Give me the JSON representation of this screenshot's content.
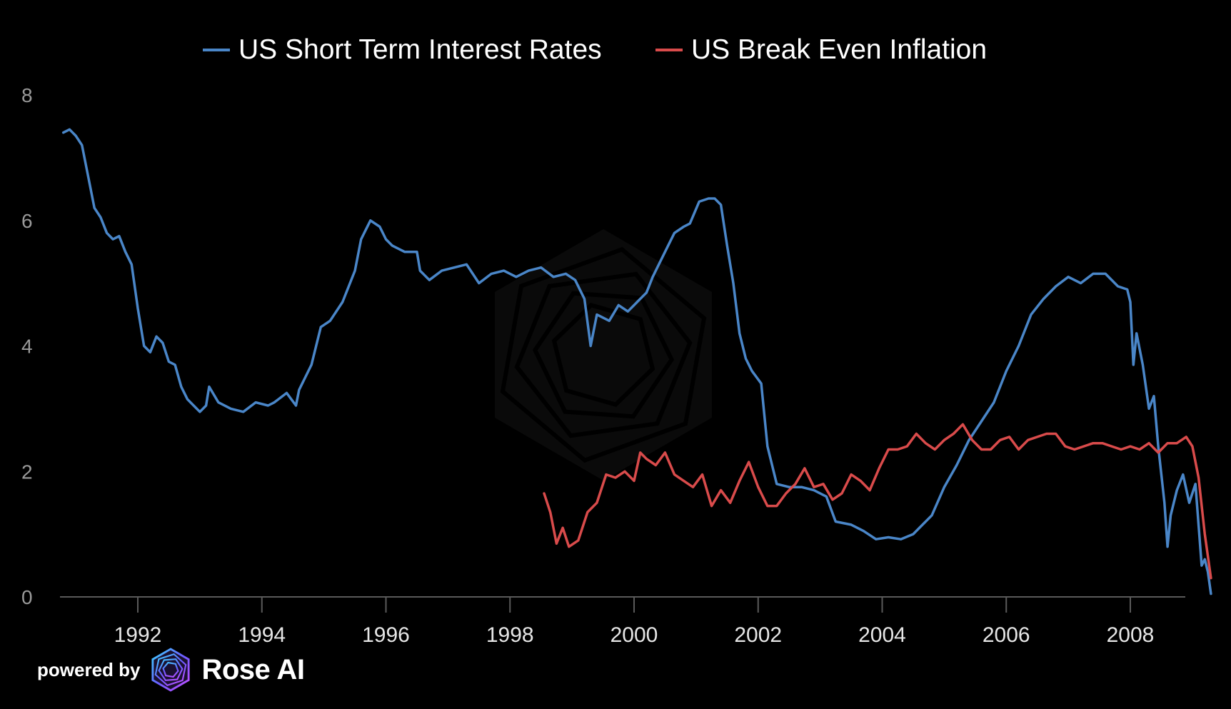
{
  "legend": [
    {
      "label": "US Short Term Interest Rates",
      "color": "#4a86c8"
    },
    {
      "label": "US Break Even Inflation",
      "color": "#d94b4b"
    }
  ],
  "footer": {
    "powered_by": "powered by",
    "brand": "Rose AI",
    "icon": "rose-ai-logo-icon"
  },
  "watermark": "rose-ai-watermark-icon",
  "chart_data": {
    "type": "line",
    "title": "",
    "xlabel": "",
    "ylabel": "",
    "xlim": [
      1990.75,
      2008.85
    ],
    "ylim": [
      0,
      8
    ],
    "x_ticks": [
      "1992",
      "1994",
      "1996",
      "1998",
      "2000",
      "2002",
      "2004",
      "2006",
      "2008"
    ],
    "y_ticks": [
      "0",
      "2",
      "4",
      "6",
      "8"
    ],
    "grid": false,
    "legend_position": "top-center",
    "series": [
      {
        "name": "US Short Term Interest Rates",
        "color": "#4a86c8",
        "points": [
          [
            1990.8,
            7.4
          ],
          [
            1990.9,
            7.45
          ],
          [
            1991.0,
            7.35
          ],
          [
            1991.1,
            7.2
          ],
          [
            1991.2,
            6.7
          ],
          [
            1991.3,
            6.2
          ],
          [
            1991.4,
            6.05
          ],
          [
            1991.5,
            5.8
          ],
          [
            1991.6,
            5.7
          ],
          [
            1991.7,
            5.75
          ],
          [
            1991.8,
            5.5
          ],
          [
            1991.9,
            5.3
          ],
          [
            1992.0,
            4.6
          ],
          [
            1992.1,
            4.0
          ],
          [
            1992.2,
            3.9
          ],
          [
            1992.3,
            4.15
          ],
          [
            1992.4,
            4.05
          ],
          [
            1992.5,
            3.75
          ],
          [
            1992.6,
            3.7
          ],
          [
            1992.7,
            3.35
          ],
          [
            1992.8,
            3.15
          ],
          [
            1992.9,
            3.05
          ],
          [
            1993.0,
            2.95
          ],
          [
            1993.1,
            3.05
          ],
          [
            1993.15,
            3.35
          ],
          [
            1993.3,
            3.1
          ],
          [
            1993.5,
            3.0
          ],
          [
            1993.7,
            2.95
          ],
          [
            1993.9,
            3.1
          ],
          [
            1994.1,
            3.05
          ],
          [
            1994.2,
            3.1
          ],
          [
            1994.4,
            3.25
          ],
          [
            1994.55,
            3.05
          ],
          [
            1994.6,
            3.3
          ],
          [
            1994.8,
            3.7
          ],
          [
            1994.95,
            4.3
          ],
          [
            1995.1,
            4.4
          ],
          [
            1995.3,
            4.7
          ],
          [
            1995.5,
            5.2
          ],
          [
            1995.6,
            5.7
          ],
          [
            1995.75,
            6.0
          ],
          [
            1995.9,
            5.9
          ],
          [
            1996.0,
            5.7
          ],
          [
            1996.1,
            5.6
          ],
          [
            1996.3,
            5.5
          ],
          [
            1996.5,
            5.5
          ],
          [
            1996.55,
            5.2
          ],
          [
            1996.7,
            5.05
          ],
          [
            1996.9,
            5.2
          ],
          [
            1997.1,
            5.25
          ],
          [
            1997.3,
            5.3
          ],
          [
            1997.5,
            5.0
          ],
          [
            1997.7,
            5.15
          ],
          [
            1997.9,
            5.2
          ],
          [
            1998.1,
            5.1
          ],
          [
            1998.3,
            5.2
          ],
          [
            1998.5,
            5.25
          ],
          [
            1998.7,
            5.1
          ],
          [
            1998.9,
            5.15
          ],
          [
            1999.05,
            5.05
          ],
          [
            1999.2,
            4.75
          ],
          [
            1999.3,
            4.0
          ],
          [
            1999.4,
            4.5
          ],
          [
            1999.6,
            4.4
          ],
          [
            1999.75,
            4.65
          ],
          [
            1999.9,
            4.55
          ],
          [
            2000.05,
            4.7
          ],
          [
            2000.2,
            4.85
          ],
          [
            2000.3,
            5.1
          ],
          [
            2000.5,
            5.5
          ],
          [
            2000.65,
            5.8
          ],
          [
            2000.8,
            5.9
          ],
          [
            2000.9,
            5.95
          ],
          [
            2001.05,
            6.3
          ],
          [
            2001.2,
            6.35
          ],
          [
            2001.3,
            6.35
          ],
          [
            2001.4,
            6.25
          ],
          [
            2001.5,
            5.6
          ],
          [
            2001.6,
            5.0
          ],
          [
            2001.7,
            4.2
          ],
          [
            2001.8,
            3.8
          ],
          [
            2001.9,
            3.6
          ],
          [
            2002.05,
            3.4
          ],
          [
            2002.15,
            2.4
          ],
          [
            2002.3,
            1.8
          ],
          [
            2002.5,
            1.75
          ],
          [
            2002.7,
            1.75
          ],
          [
            2002.9,
            1.7
          ],
          [
            2003.1,
            1.6
          ],
          [
            2003.25,
            1.2
          ],
          [
            2003.5,
            1.15
          ],
          [
            2003.7,
            1.05
          ],
          [
            2003.9,
            0.92
          ],
          [
            2004.1,
            0.95
          ],
          [
            2004.3,
            0.92
          ],
          [
            2004.5,
            1.0
          ],
          [
            2004.65,
            1.15
          ],
          [
            2004.8,
            1.3
          ],
          [
            2005.0,
            1.75
          ],
          [
            2005.2,
            2.1
          ],
          [
            2005.4,
            2.5
          ],
          [
            2005.6,
            2.8
          ],
          [
            2005.8,
            3.1
          ],
          [
            2006.0,
            3.6
          ],
          [
            2006.2,
            4.0
          ],
          [
            2006.4,
            4.5
          ],
          [
            2006.6,
            4.75
          ],
          [
            2006.8,
            4.95
          ],
          [
            2007.0,
            5.1
          ],
          [
            2007.2,
            5.0
          ],
          [
            2007.4,
            5.15
          ],
          [
            2007.6,
            5.15
          ],
          [
            2007.8,
            4.95
          ],
          [
            2007.95,
            4.9
          ],
          [
            2008.0,
            4.7
          ],
          [
            2008.05,
            3.7
          ],
          [
            2008.1,
            4.2
          ],
          [
            2008.2,
            3.7
          ],
          [
            2008.3,
            3.0
          ],
          [
            2008.38,
            3.2
          ],
          [
            2008.45,
            2.4
          ],
          [
            2008.55,
            1.5
          ],
          [
            2008.6,
            0.8
          ],
          [
            2008.65,
            1.3
          ],
          [
            2008.75,
            1.7
          ],
          [
            2008.85,
            1.95
          ],
          [
            2008.95,
            1.5
          ],
          [
            2009.05,
            1.8
          ],
          [
            2009.15,
            0.5
          ],
          [
            2009.2,
            0.6
          ],
          [
            2009.25,
            0.4
          ],
          [
            2009.3,
            0.05
          ]
        ]
      },
      {
        "name": "US Break Even Inflation",
        "color": "#d94b4b",
        "points": [
          [
            1998.55,
            1.65
          ],
          [
            1998.65,
            1.35
          ],
          [
            1998.75,
            0.85
          ],
          [
            1998.85,
            1.1
          ],
          [
            1998.95,
            0.8
          ],
          [
            1999.1,
            0.9
          ],
          [
            1999.25,
            1.35
          ],
          [
            1999.4,
            1.5
          ],
          [
            1999.55,
            1.95
          ],
          [
            1999.7,
            1.9
          ],
          [
            1999.85,
            2.0
          ],
          [
            2000.0,
            1.85
          ],
          [
            2000.1,
            2.3
          ],
          [
            2000.2,
            2.2
          ],
          [
            2000.35,
            2.1
          ],
          [
            2000.5,
            2.3
          ],
          [
            2000.65,
            1.95
          ],
          [
            2000.8,
            1.85
          ],
          [
            2000.95,
            1.75
          ],
          [
            2001.1,
            1.95
          ],
          [
            2001.25,
            1.45
          ],
          [
            2001.4,
            1.7
          ],
          [
            2001.55,
            1.5
          ],
          [
            2001.7,
            1.85
          ],
          [
            2001.85,
            2.15
          ],
          [
            2002.0,
            1.75
          ],
          [
            2002.15,
            1.45
          ],
          [
            2002.3,
            1.45
          ],
          [
            2002.45,
            1.65
          ],
          [
            2002.6,
            1.8
          ],
          [
            2002.75,
            2.05
          ],
          [
            2002.9,
            1.75
          ],
          [
            2003.05,
            1.8
          ],
          [
            2003.2,
            1.55
          ],
          [
            2003.35,
            1.65
          ],
          [
            2003.5,
            1.95
          ],
          [
            2003.65,
            1.85
          ],
          [
            2003.8,
            1.7
          ],
          [
            2003.95,
            2.05
          ],
          [
            2004.1,
            2.35
          ],
          [
            2004.25,
            2.35
          ],
          [
            2004.4,
            2.4
          ],
          [
            2004.55,
            2.6
          ],
          [
            2004.7,
            2.45
          ],
          [
            2004.85,
            2.35
          ],
          [
            2005.0,
            2.5
          ],
          [
            2005.15,
            2.6
          ],
          [
            2005.3,
            2.75
          ],
          [
            2005.45,
            2.5
          ],
          [
            2005.6,
            2.35
          ],
          [
            2005.75,
            2.35
          ],
          [
            2005.9,
            2.5
          ],
          [
            2006.05,
            2.55
          ],
          [
            2006.2,
            2.35
          ],
          [
            2006.35,
            2.5
          ],
          [
            2006.5,
            2.55
          ],
          [
            2006.65,
            2.6
          ],
          [
            2006.8,
            2.6
          ],
          [
            2006.95,
            2.4
          ],
          [
            2007.1,
            2.35
          ],
          [
            2007.25,
            2.4
          ],
          [
            2007.4,
            2.45
          ],
          [
            2007.55,
            2.45
          ],
          [
            2007.7,
            2.4
          ],
          [
            2007.85,
            2.35
          ],
          [
            2008.0,
            2.4
          ],
          [
            2008.15,
            2.35
          ],
          [
            2008.3,
            2.45
          ],
          [
            2008.45,
            2.3
          ],
          [
            2008.6,
            2.45
          ],
          [
            2008.75,
            2.45
          ],
          [
            2008.9,
            2.55
          ],
          [
            2009.0,
            2.4
          ],
          [
            2009.1,
            1.9
          ],
          [
            2009.2,
            1.0
          ],
          [
            2009.3,
            0.3
          ]
        ]
      }
    ]
  }
}
